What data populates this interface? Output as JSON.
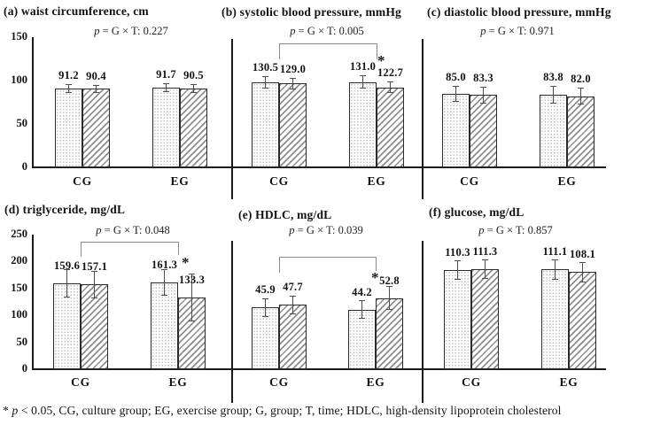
{
  "figure": {
    "background": "#ffffff",
    "line_color": "#1a1a1a",
    "bracket_color": "#8a8a8a",
    "bar_patterns": [
      "dotted",
      "diagonal-hatch"
    ]
  },
  "footnote": {
    "star": "* ",
    "p": "p",
    "rest": " < 0.05, CG, culture group; EG, exercise group; G, group; T, time; HDLC, high-density lipoprotein cholesterol"
  },
  "chart_data": [
    {
      "id": "a",
      "type": "bar",
      "title": "(a) waist circumference, cm",
      "p_label": {
        "p": "p",
        "rest": " = G × T: 0.227"
      },
      "categories": [
        "CG",
        "EG"
      ],
      "series": [
        {
          "name": "dotted",
          "pattern": "dots",
          "values": [
            "91.2",
            "91.7"
          ],
          "errors": [
            5,
            5
          ]
        },
        {
          "name": "hatched",
          "pattern": "hatch",
          "values": [
            "90.4",
            "90.5"
          ],
          "errors": [
            5,
            5
          ]
        }
      ],
      "ylim": [
        0,
        150
      ],
      "yticks": [
        0,
        50,
        100,
        150
      ],
      "bracket": null
    },
    {
      "id": "b",
      "type": "bar",
      "title": "(b) systolic blood pressure, mmHg",
      "p_label": {
        "p": "p",
        "rest": " = G × T: 0.005"
      },
      "categories": [
        "CG",
        "EG"
      ],
      "series": [
        {
          "name": "dotted",
          "pattern": "dots",
          "values": [
            "130.5",
            "131.0"
          ],
          "errors": [
            9,
            10
          ]
        },
        {
          "name": "hatched",
          "pattern": "hatch",
          "values": [
            "129.0",
            "122.7"
          ],
          "errors": [
            9,
            9
          ]
        }
      ],
      "ylim": [
        0,
        200
      ],
      "yticks": [],
      "bracket": {
        "from": "CG",
        "to": "EG",
        "star": "*"
      }
    },
    {
      "id": "c",
      "type": "bar",
      "title": "(c) diastolic blood pressure, mmHg",
      "p_label": {
        "p": "p",
        "rest": " = G × T: 0.971"
      },
      "categories": [
        "CG",
        "EG"
      ],
      "series": [
        {
          "name": "dotted",
          "pattern": "dots",
          "values": [
            "85.0",
            "83.8"
          ],
          "errors": [
            9,
            10
          ]
        },
        {
          "name": "hatched",
          "pattern": "hatch",
          "values": [
            "83.3",
            "82.0"
          ],
          "errors": [
            10,
            10
          ]
        }
      ],
      "ylim": [
        0,
        150
      ],
      "yticks": [],
      "bracket": null
    },
    {
      "id": "d",
      "type": "bar",
      "title": "(d) triglyceride, mg/dL",
      "p_label": {
        "p": "p",
        "rest": " = G × T: 0.048"
      },
      "categories": [
        "CG",
        "EG"
      ],
      "series": [
        {
          "name": "dotted",
          "pattern": "dots",
          "values": [
            "159.6",
            "161.3"
          ],
          "errors": [
            26,
            25
          ]
        },
        {
          "name": "hatched",
          "pattern": "hatch",
          "values": [
            "157.1",
            "133.3"
          ],
          "errors": [
            25,
            44
          ]
        }
      ],
      "ylim": [
        0,
        250
      ],
      "yticks": [
        0,
        50,
        100,
        150,
        200,
        250
      ],
      "bracket": {
        "from": "CG",
        "to": "EG",
        "star": "*"
      }
    },
    {
      "id": "e",
      "type": "bar",
      "title": "(e) HDLC, mg/dL",
      "p_label": {
        "p": "p",
        "rest": " = G × T: 0.039"
      },
      "categories": [
        "CG",
        "EG"
      ],
      "series": [
        {
          "name": "dotted",
          "pattern": "dots",
          "values": [
            "45.9",
            "44.2"
          ],
          "errors": [
            7,
            7
          ]
        },
        {
          "name": "hatched",
          "pattern": "hatch",
          "values": [
            "47.7",
            "52.8"
          ],
          "errors": [
            7,
            9
          ]
        }
      ],
      "ylim": [
        0,
        100
      ],
      "yticks": [],
      "bracket": {
        "from": "CG",
        "to": "EG",
        "star": "*"
      }
    },
    {
      "id": "f",
      "type": "bar",
      "title": "(f) glucose, mg/dL",
      "p_label": {
        "p": "p",
        "rest": " = G × T: 0.857"
      },
      "categories": [
        "CG",
        "EG"
      ],
      "series": [
        {
          "name": "dotted",
          "pattern": "dots",
          "values": [
            "110.3",
            "111.1"
          ],
          "errors": [
            11,
            11
          ]
        },
        {
          "name": "hatched",
          "pattern": "hatch",
          "values": [
            "111.3",
            "108.1"
          ],
          "errors": [
            11,
            11
          ]
        }
      ],
      "ylim": [
        0,
        150
      ],
      "yticks": [],
      "bracket": null
    }
  ]
}
